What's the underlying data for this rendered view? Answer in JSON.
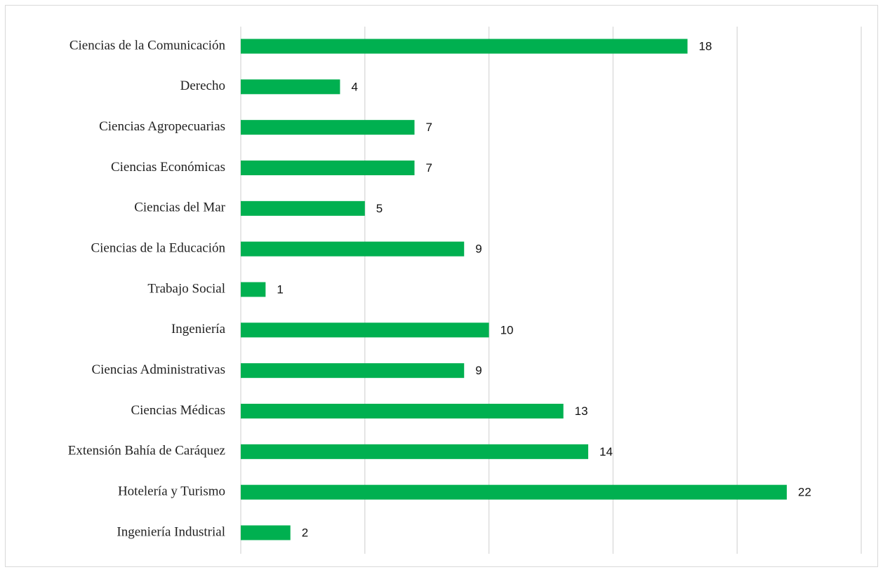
{
  "chart_data": {
    "type": "barh",
    "categories": [
      "Ciencias de la Comunicación",
      "Derecho",
      "Ciencias Agropecuarias",
      "Ciencias Económicas",
      "Ciencias del Mar",
      "Ciencias de la Educación",
      "Trabajo Social",
      "Ingeniería",
      "Ciencias Administrativas",
      "Ciencias Médicas",
      "Extensión Bahía de Caráquez",
      "Hotelería y Turismo",
      "Ingeniería Industrial"
    ],
    "values": [
      18,
      4,
      7,
      7,
      5,
      9,
      1,
      10,
      9,
      13,
      14,
      22,
      2
    ],
    "color": "#00b050",
    "xlim": [
      0,
      25
    ],
    "xticks": [
      0,
      5,
      10,
      15,
      20,
      25
    ],
    "grid": true
  }
}
